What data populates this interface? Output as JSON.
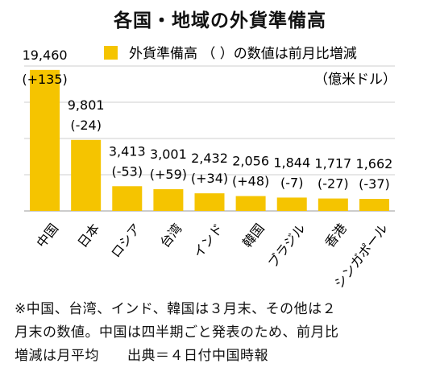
{
  "chart_data": {
    "type": "bar",
    "title": "各国・地域の外貨準備高",
    "categories": [
      "中国",
      "日本",
      "ロシア",
      "台湾",
      "インド",
      "韓国",
      "ブラジル",
      "香港",
      "シンガポール"
    ],
    "values": [
      19460,
      9801,
      3413,
      3001,
      2432,
      2056,
      1844,
      1717,
      1662
    ],
    "value_labels": [
      "19,460",
      "9,801",
      "3,413",
      "3,001",
      "2,432",
      "2,056",
      "1,844",
      "1,717",
      "1,662"
    ],
    "change_labels": [
      "(+135)",
      "(-24)",
      "(-53)",
      "(+59)",
      "(+34)",
      "(+48)",
      "(-7)",
      "(-27)",
      "(-37)"
    ],
    "legend": "外貨準備高 （ ）の数値は前月比増減",
    "unit": "（億米ドル）",
    "bar_color": "#f5c400",
    "grid": true,
    "ylim": [
      0,
      20000
    ]
  },
  "footnote": {
    "lines": [
      "※中国、台湾、インド、韓国は３月末、その他は２",
      "月末の数値。中国は四半期ごと発表のため、前月比",
      "増減は月平均　　出典＝４日付中国時報"
    ]
  }
}
